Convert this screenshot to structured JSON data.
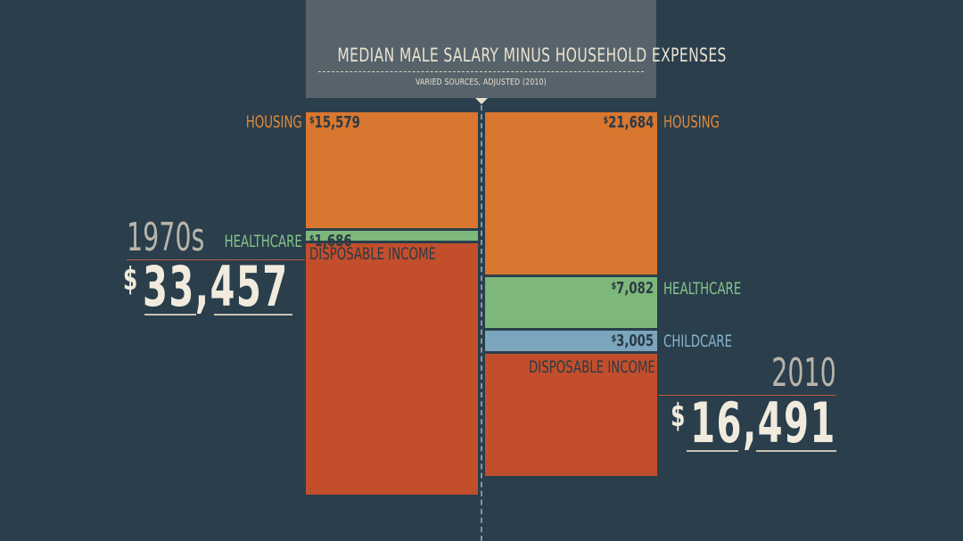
{
  "header": {
    "title": "MEDIAN MALE SALARY MINUS HOUSEHOLD EXPENSES",
    "subtitle": "VARIED SOURCES, ADJUSTED (2010)"
  },
  "colors": {
    "background": "#2a3e4c",
    "housing": "#d9762f",
    "healthcare": "#7db87a",
    "childcare": "#7aa5bd",
    "disposable": "#c24e2c",
    "housing_label": "#e08a3a",
    "healthcare_label": "#86c48a",
    "childcare_label": "#8ab4cc"
  },
  "chart_data": {
    "type": "bar",
    "stacked": true,
    "unit": "$",
    "categories": [
      "1970s",
      "2010"
    ],
    "series": [
      {
        "name": "HOUSING",
        "values": [
          15579,
          21684
        ]
      },
      {
        "name": "HEALTHCARE",
        "values": [
          1686,
          7082
        ]
      },
      {
        "name": "CHILDCARE",
        "values": [
          null,
          3005
        ]
      },
      {
        "name": "DISPOSABLE INCOME",
        "values": [
          33457,
          16491
        ]
      }
    ],
    "labels": {
      "left": {
        "era": "1970s",
        "total": "33,457",
        "currency": "$",
        "housing": {
          "name": "HOUSING",
          "value": "15,579"
        },
        "healthcare": {
          "name": "HEALTHCARE",
          "value": "1,686"
        },
        "disposable": {
          "name": "DISPOSABLE INCOME"
        }
      },
      "right": {
        "era": "2010",
        "total": "16,491",
        "currency": "$",
        "housing": {
          "name": "HOUSING",
          "value": "21,684"
        },
        "healthcare": {
          "name": "HEALTHCARE",
          "value": "7,082"
        },
        "childcare": {
          "name": "CHILDCARE",
          "value": "3,005"
        },
        "disposable": {
          "name": "DISPOSABLE INCOME"
        }
      }
    }
  }
}
